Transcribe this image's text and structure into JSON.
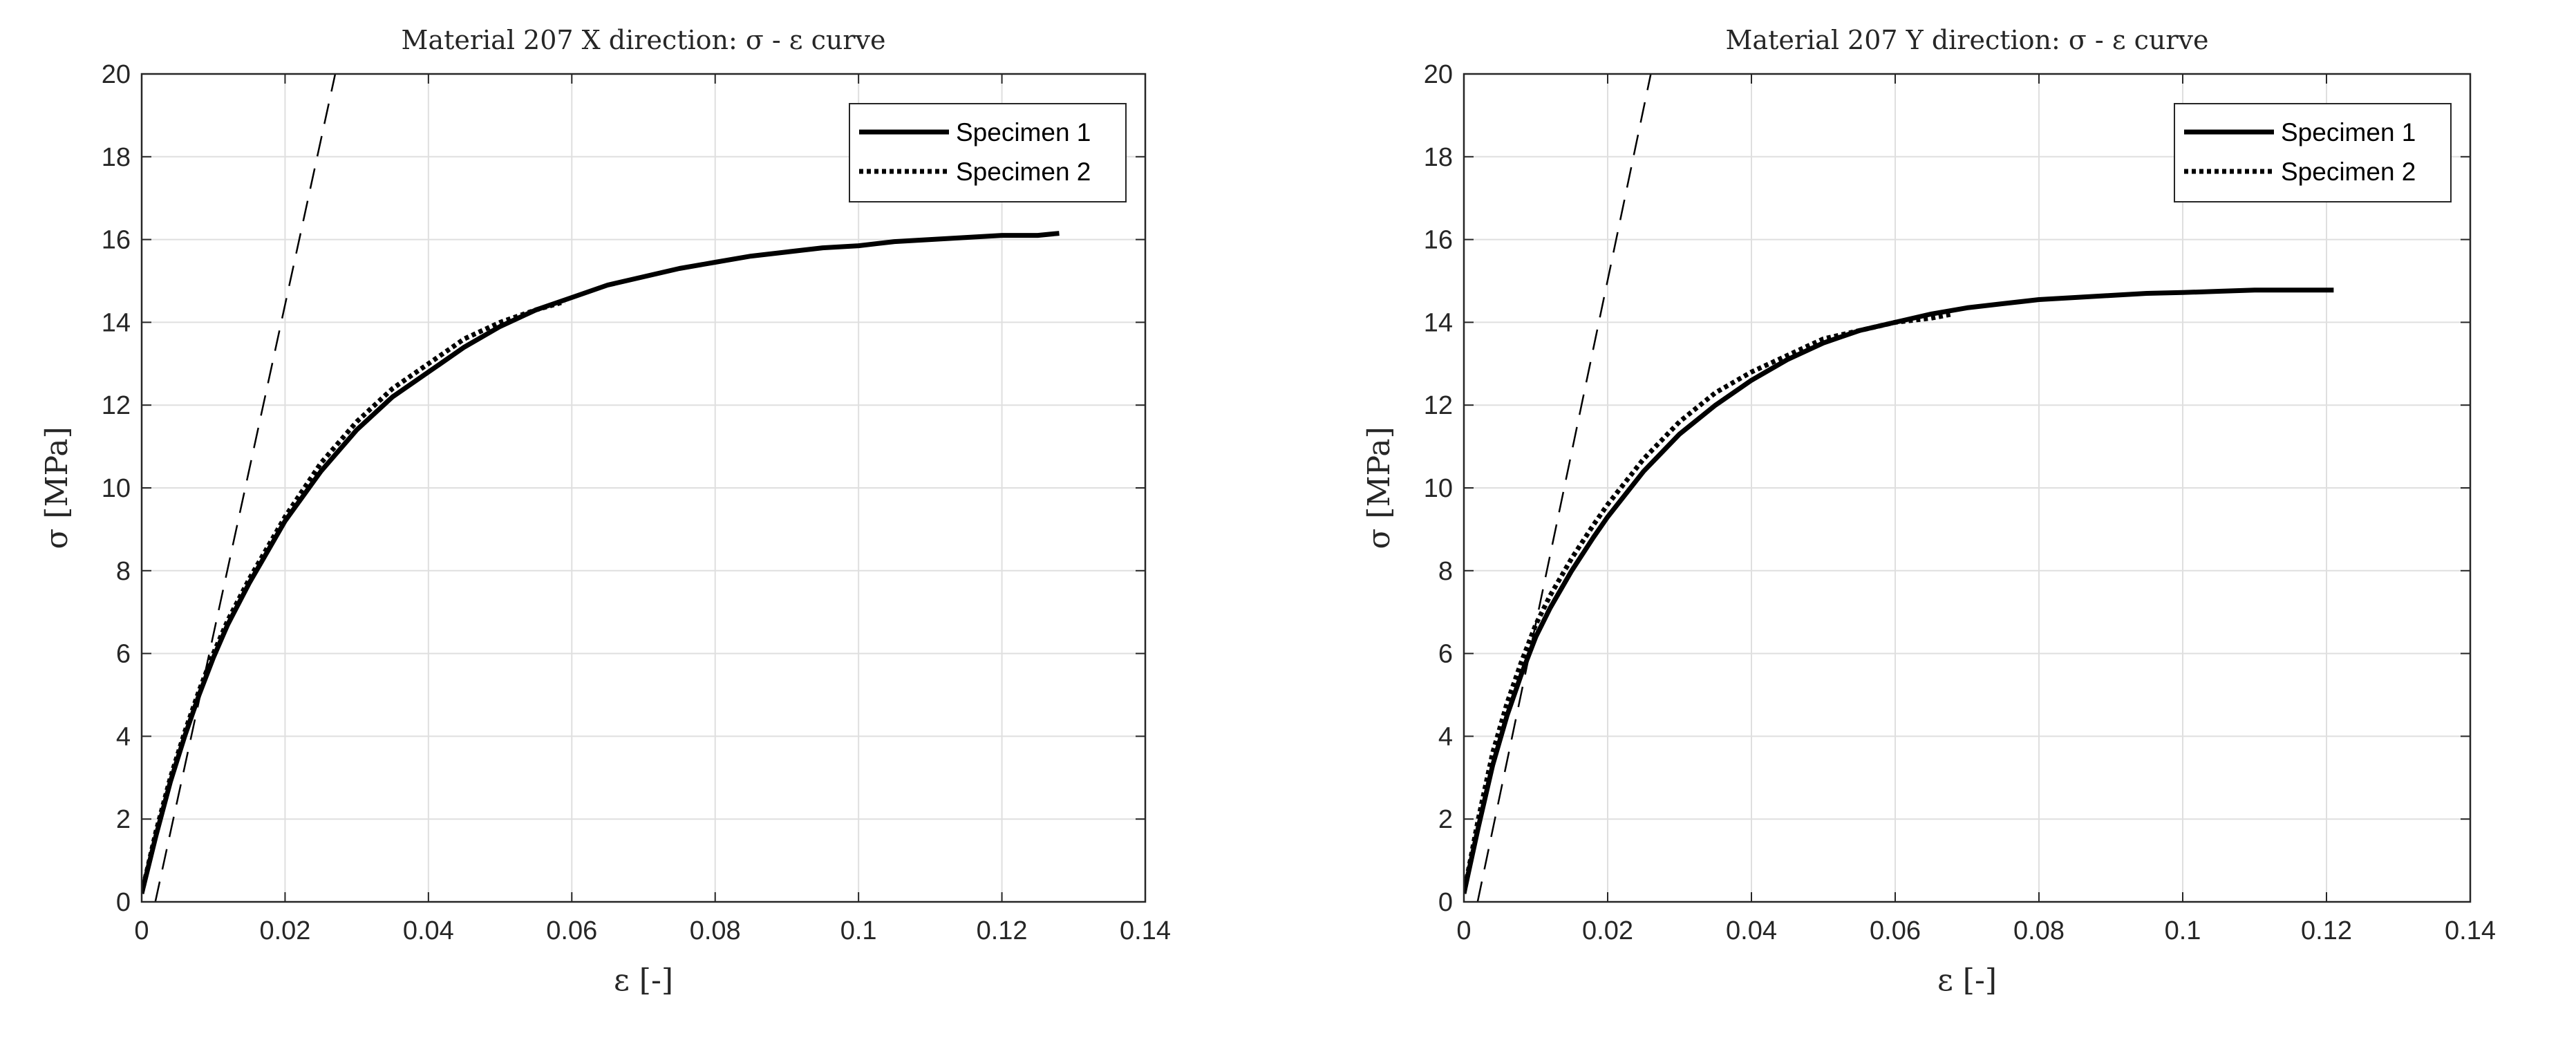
{
  "chart_data": [
    {
      "type": "line",
      "title": "Material 207 X direction: σ - ε curve",
      "xlabel": "ε [-]",
      "ylabel": "σ [MPa]",
      "xlim": [
        0,
        0.14
      ],
      "ylim": [
        0,
        20
      ],
      "xticks": [
        "0",
        "0.02",
        "0.04",
        "0.06",
        "0.08",
        "0.1",
        "0.12",
        "0.14"
      ],
      "yticks": [
        "0",
        "2",
        "4",
        "6",
        "8",
        "10",
        "12",
        "14",
        "16",
        "18",
        "20"
      ],
      "grid": true,
      "legend_position": "top-right",
      "series": [
        {
          "name": "Specimen 1",
          "style": "solid",
          "x": [
            0.0,
            0.002,
            0.004,
            0.006,
            0.008,
            0.01,
            0.012,
            0.015,
            0.018,
            0.02,
            0.025,
            0.03,
            0.035,
            0.04,
            0.045,
            0.05,
            0.055,
            0.06,
            0.065,
            0.07,
            0.075,
            0.08,
            0.085,
            0.09,
            0.095,
            0.1,
            0.105,
            0.11,
            0.115,
            0.12,
            0.125,
            0.128
          ],
          "y": [
            0.2,
            1.6,
            2.9,
            4.0,
            5.0,
            5.9,
            6.7,
            7.7,
            8.6,
            9.2,
            10.4,
            11.4,
            12.2,
            12.8,
            13.4,
            13.9,
            14.3,
            14.6,
            14.9,
            15.1,
            15.3,
            15.45,
            15.6,
            15.7,
            15.8,
            15.85,
            15.95,
            16.0,
            16.05,
            16.1,
            16.1,
            16.15
          ]
        },
        {
          "name": "Specimen 2",
          "style": "dotted",
          "x": [
            0.0,
            0.002,
            0.004,
            0.006,
            0.008,
            0.01,
            0.012,
            0.015,
            0.018,
            0.02,
            0.025,
            0.03,
            0.035,
            0.04,
            0.045,
            0.05,
            0.055,
            0.059
          ],
          "y": [
            0.2,
            1.7,
            3.0,
            4.1,
            5.1,
            6.0,
            6.8,
            7.8,
            8.7,
            9.3,
            10.6,
            11.6,
            12.4,
            13.0,
            13.6,
            14.0,
            14.3,
            14.5
          ]
        },
        {
          "name": "",
          "style": "dashed",
          "x": [
            0.0019,
            0.027
          ],
          "y": [
            0.0,
            20.0
          ]
        }
      ]
    },
    {
      "type": "line",
      "title": "Material 207 Y direction: σ - ε curve",
      "xlabel": "ε [-]",
      "ylabel": "σ [MPa]",
      "xlim": [
        0,
        0.14
      ],
      "ylim": [
        0,
        20
      ],
      "xticks": [
        "0",
        "0.02",
        "0.04",
        "0.06",
        "0.08",
        "0.1",
        "0.12",
        "0.14"
      ],
      "yticks": [
        "0",
        "2",
        "4",
        "6",
        "8",
        "10",
        "12",
        "14",
        "16",
        "18",
        "20"
      ],
      "grid": true,
      "legend_position": "top-right",
      "series": [
        {
          "name": "Specimen 1",
          "style": "solid",
          "x": [
            0.0,
            0.002,
            0.004,
            0.006,
            0.008,
            0.01,
            0.012,
            0.015,
            0.018,
            0.02,
            0.025,
            0.03,
            0.035,
            0.04,
            0.045,
            0.05,
            0.055,
            0.06,
            0.065,
            0.07,
            0.075,
            0.08,
            0.085,
            0.09,
            0.095,
            0.1,
            0.105,
            0.11,
            0.115,
            0.121
          ],
          "y": [
            0.2,
            1.8,
            3.3,
            4.5,
            5.5,
            6.4,
            7.1,
            8.0,
            8.8,
            9.3,
            10.4,
            11.3,
            12.0,
            12.6,
            13.1,
            13.5,
            13.8,
            14.0,
            14.2,
            14.35,
            14.45,
            14.55,
            14.6,
            14.65,
            14.7,
            14.72,
            14.75,
            14.78,
            14.78,
            14.78
          ]
        },
        {
          "name": "Specimen 2",
          "style": "dotted",
          "x": [
            0.0,
            0.002,
            0.004,
            0.006,
            0.008,
            0.01,
            0.012,
            0.015,
            0.018,
            0.02,
            0.025,
            0.03,
            0.035,
            0.04,
            0.045,
            0.05,
            0.055,
            0.06,
            0.065,
            0.068
          ],
          "y": [
            0.2,
            2.0,
            3.6,
            4.8,
            5.8,
            6.7,
            7.4,
            8.3,
            9.1,
            9.6,
            10.7,
            11.6,
            12.3,
            12.8,
            13.2,
            13.6,
            13.8,
            14.0,
            14.1,
            14.2
          ]
        },
        {
          "name": "",
          "style": "dashed",
          "x": [
            0.0019,
            0.026
          ],
          "y": [
            0.0,
            20.0
          ]
        }
      ]
    }
  ]
}
